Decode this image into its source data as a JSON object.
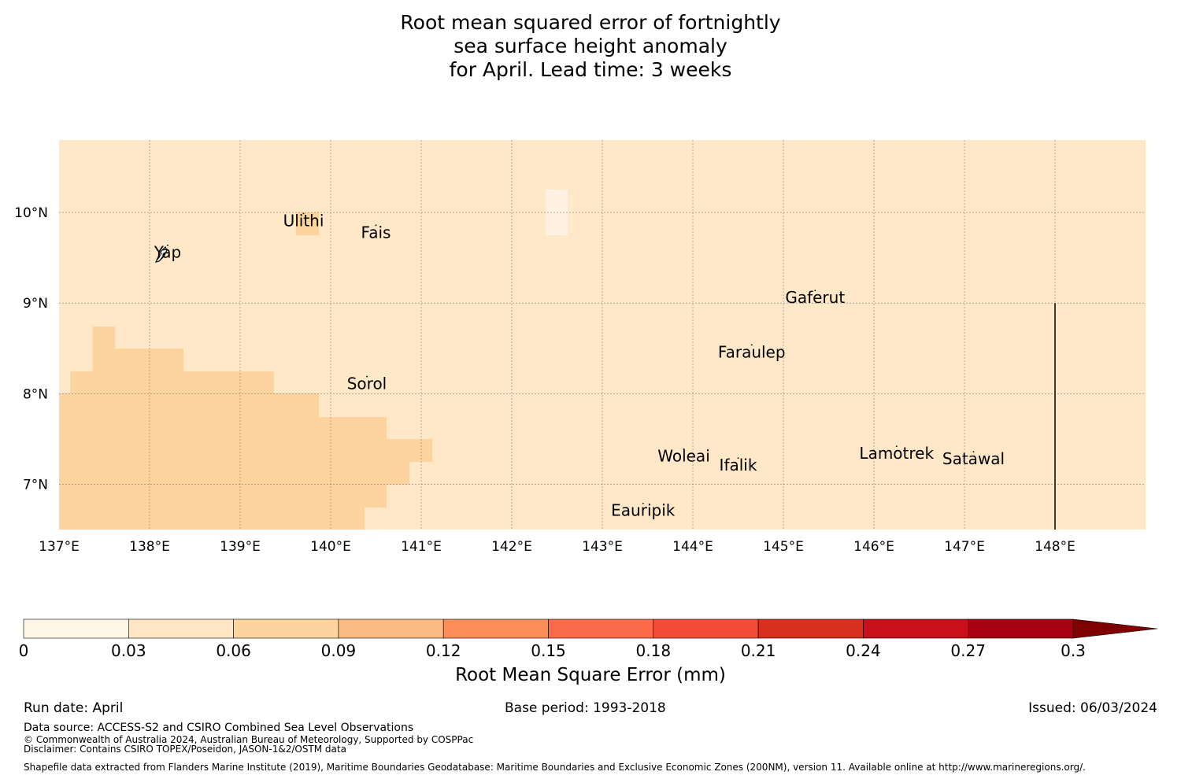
{
  "title": {
    "line1": "Root mean squared error of fortnightly",
    "line2": "sea surface height anomaly",
    "line3": "for April. Lead time: 3 weeks"
  },
  "map": {
    "lon_range": [
      137,
      149
    ],
    "lat_range": [
      6.5,
      10.8
    ],
    "background_color": "#fee8c8",
    "lon_ticks": [
      "137°E",
      "138°E",
      "139°E",
      "140°E",
      "141°E",
      "142°E",
      "143°E",
      "144°E",
      "145°E",
      "146°E",
      "147°E",
      "148°E"
    ],
    "lat_ticks": [
      "10°N",
      "9°N",
      "8°N",
      "7°N"
    ],
    "places": [
      {
        "name": "Yap",
        "lon": 138.2,
        "lat": 9.5
      },
      {
        "name": "Ulithi",
        "lon": 139.7,
        "lat": 9.85
      },
      {
        "name": "Fais",
        "lon": 140.5,
        "lat": 9.72
      },
      {
        "name": "Sorol",
        "lon": 140.4,
        "lat": 8.05
      },
      {
        "name": "Gaferut",
        "lon": 145.35,
        "lat": 9.0
      },
      {
        "name": "Faraulep",
        "lon": 144.65,
        "lat": 8.4
      },
      {
        "name": "Woleai",
        "lon": 143.9,
        "lat": 7.25
      },
      {
        "name": "Ifalik",
        "lon": 144.5,
        "lat": 7.15
      },
      {
        "name": "Lamotrek",
        "lon": 146.25,
        "lat": 7.28
      },
      {
        "name": "Satawal",
        "lon": 147.1,
        "lat": 7.22
      },
      {
        "name": "Eauripik",
        "lon": 143.45,
        "lat": 6.65
      }
    ],
    "boundary_line": {
      "lon": 148.0,
      "lat_from": 6.5,
      "lat_to": 9.0
    }
  },
  "colorbar": {
    "ticks": [
      "0",
      "0.03",
      "0.06",
      "0.09",
      "0.12",
      "0.15",
      "0.18",
      "0.21",
      "0.24",
      "0.27",
      "0.3"
    ],
    "colors": [
      "#fff5e6",
      "#fee6c5",
      "#fdd49e",
      "#fdbb84",
      "#fc8d59",
      "#fc6a4a",
      "#f44a38",
      "#d7301f",
      "#c9101a",
      "#a80212",
      "#7f0000"
    ],
    "label": "Root Mean Square Error (mm)"
  },
  "footer": {
    "run_date": "Run date: April",
    "base_period": "Base period: 1993-2018",
    "issued": "Issued: 06/03/2024",
    "data_source": "Data source: ACCESS-S2 and CSIRO Combined Sea Level Observations",
    "copyright": "© Commonwealth of Australia 2024, Australian Bureau of Meteorology, Supported by COSPPac",
    "disclaimer": "Disclaimer: Contains CSIRO TOPEX/Poseidon, JASON-1&2/OSTM data",
    "shapefile": "Shapefile data extracted from Flanders Marine Institute (2019), Maritime Boundaries Geodatabase: Maritime Boundaries and Exclusive Economic Zones (200NM), version 11. Available online at http://www.marineregions.org/."
  }
}
